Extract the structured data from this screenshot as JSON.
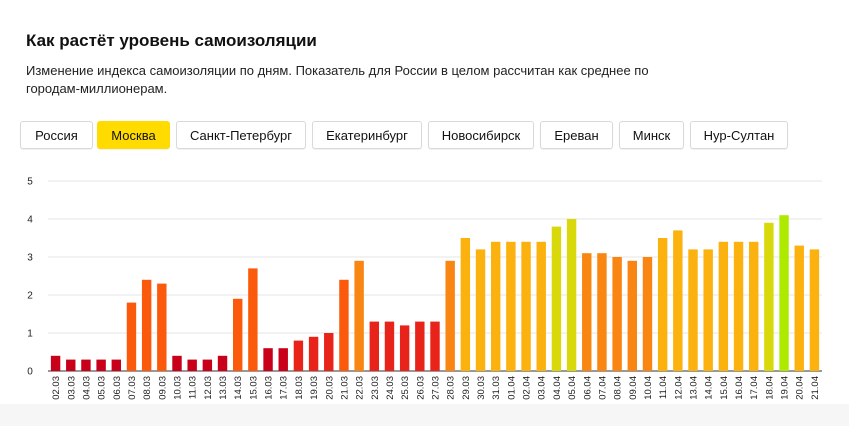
{
  "header": {
    "title": "Как растёт уровень самоизоляции",
    "subtitle": "Изменение индекса самоизоляции по дням. Показатель для России в целом рассчитан как среднее по городам-миллионерам."
  },
  "tabs": [
    {
      "label": "Россия",
      "active": false
    },
    {
      "label": "Москва",
      "active": true
    },
    {
      "label": "Санкт-Петербург",
      "active": false
    },
    {
      "label": "Екатеринбург",
      "active": false
    },
    {
      "label": "Новосибирск",
      "active": false
    },
    {
      "label": "Ереван",
      "active": false
    },
    {
      "label": "Минск",
      "active": false
    },
    {
      "label": "Нур-Султан",
      "active": false
    }
  ],
  "colors": {
    "active_tab": "#ffdb00",
    "level_1": "#c8001a",
    "level_2": "#e8241a",
    "level_3": "#fb5a0c",
    "level_4": "#f98512",
    "level_5": "#fbb10e",
    "level_6": "#d8d80a",
    "level_7": "#aeea00"
  },
  "chart_data": {
    "type": "bar",
    "categories": [
      "02.03",
      "03.03",
      "04.03",
      "05.03",
      "06.03",
      "07.03",
      "08.03",
      "09.03",
      "10.03",
      "11.03",
      "12.03",
      "13.03",
      "14.03",
      "15.03",
      "16.03",
      "17.03",
      "18.03",
      "19.03",
      "20.03",
      "21.03",
      "22.03",
      "23.03",
      "24.03",
      "25.03",
      "26.03",
      "27.03",
      "28.03",
      "29.03",
      "30.03",
      "31.03",
      "01.04",
      "02.04",
      "03.04",
      "04.04",
      "05.04",
      "06.04",
      "07.04",
      "08.04",
      "09.04",
      "10.04",
      "11.04",
      "12.04",
      "13.04",
      "14.04",
      "15.04",
      "16.04",
      "17.04",
      "18.04",
      "19.04",
      "20.04",
      "21.04"
    ],
    "values": [
      0.4,
      0.3,
      0.3,
      0.3,
      0.3,
      1.8,
      2.4,
      2.3,
      0.4,
      0.3,
      0.3,
      0.4,
      1.9,
      2.7,
      0.6,
      0.6,
      0.8,
      0.9,
      1.0,
      2.4,
      2.9,
      1.3,
      1.3,
      1.2,
      1.3,
      1.3,
      2.9,
      3.5,
      3.2,
      3.4,
      3.4,
      3.4,
      3.4,
      3.8,
      4.0,
      3.1,
      3.1,
      3.0,
      2.9,
      3.0,
      3.5,
      3.7,
      3.2,
      3.2,
      3.4,
      3.4,
      3.4,
      3.9,
      4.1,
      3.3,
      3.2
    ],
    "ylim": [
      0,
      5
    ],
    "yticks": [
      "0",
      "1",
      "2",
      "3",
      "4",
      "5"
    ],
    "grid": true,
    "xlabel": "",
    "ylabel": "",
    "legend": "none"
  }
}
